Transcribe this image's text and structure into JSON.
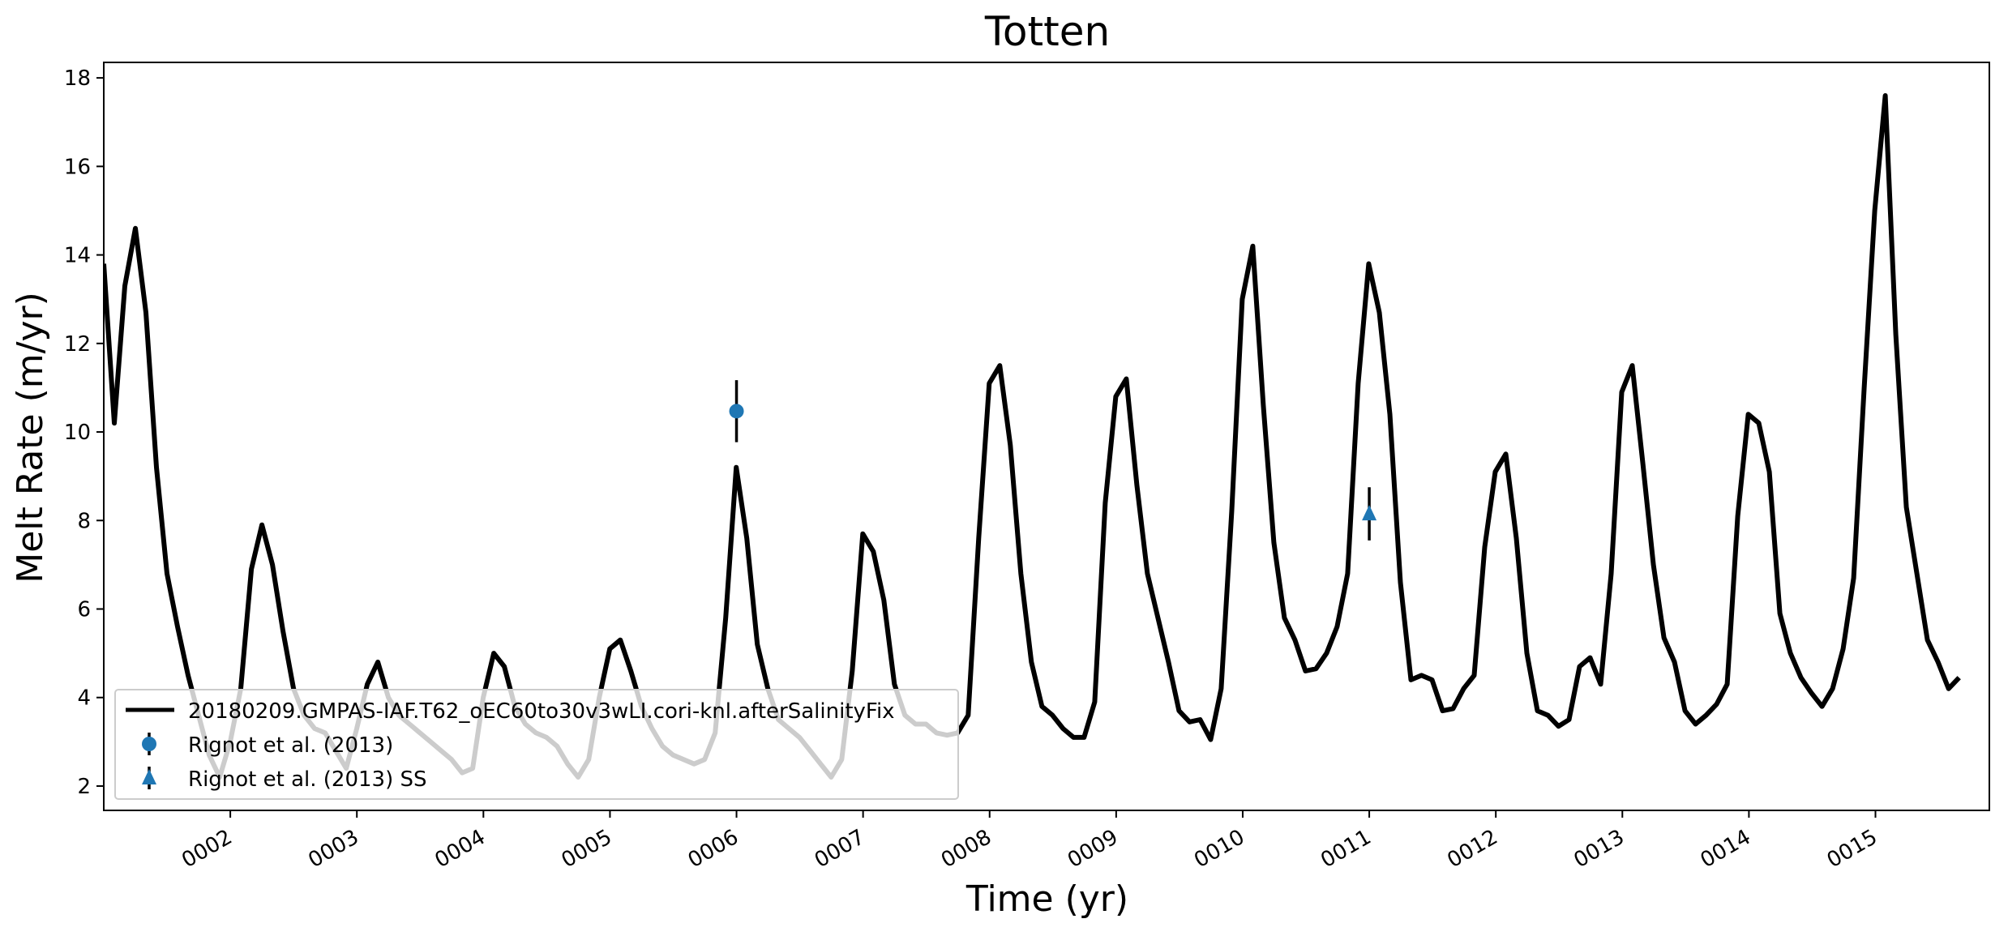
{
  "chart_data": {
    "type": "line",
    "title": "Totten",
    "xlabel": "Time (yr)",
    "ylabel": "Melt Rate (m/yr)",
    "xlim": [
      1.0,
      15.9
    ],
    "ylim": [
      1.45,
      18.35
    ],
    "x_ticks": [
      2,
      3,
      4,
      5,
      6,
      7,
      8,
      9,
      10,
      11,
      12,
      13,
      14,
      15
    ],
    "x_tick_labels": [
      "0002",
      "0003",
      "0004",
      "0005",
      "0006",
      "0007",
      "0008",
      "0009",
      "0010",
      "0011",
      "0012",
      "0013",
      "0014",
      "0015"
    ],
    "y_ticks": [
      2,
      4,
      6,
      8,
      10,
      12,
      14,
      16,
      18
    ],
    "y_tick_labels": [
      "2",
      "4",
      "6",
      "8",
      "10",
      "12",
      "14",
      "16",
      "18"
    ],
    "grid": false,
    "legend_position": "lower-left",
    "series": [
      {
        "name": "20180209.GMPAS-IAF.T62_oEC60to30v3wLI.cori-knl.afterSalinityFix",
        "color": "#000000",
        "marker": "none",
        "x_start": 1.0,
        "x_step": 0.0833,
        "values": [
          13.8,
          10.2,
          13.3,
          14.6,
          12.7,
          9.2,
          6.8,
          5.6,
          4.5,
          3.6,
          2.7,
          2.2,
          3.0,
          4.2,
          6.9,
          7.9,
          7.0,
          5.5,
          4.2,
          3.6,
          3.3,
          3.2,
          2.8,
          2.4,
          3.3,
          4.3,
          4.8,
          4.0,
          3.6,
          3.4,
          3.2,
          3.0,
          2.8,
          2.6,
          2.3,
          2.4,
          4.0,
          5.0,
          4.7,
          3.8,
          3.4,
          3.2,
          3.1,
          2.9,
          2.5,
          2.2,
          2.6,
          4.0,
          5.1,
          5.3,
          4.6,
          3.8,
          3.3,
          2.9,
          2.7,
          2.6,
          2.5,
          2.6,
          3.2,
          5.8,
          9.2,
          7.6,
          5.2,
          4.2,
          3.5,
          3.3,
          3.1,
          2.8,
          2.5,
          2.2,
          2.6,
          4.6,
          7.7,
          7.3,
          6.2,
          4.3,
          3.6,
          3.4,
          3.4,
          3.2,
          3.15,
          3.2,
          3.6,
          7.6,
          11.1,
          11.5,
          9.7,
          6.8,
          4.8,
          3.8,
          3.6,
          3.3,
          3.1,
          3.1,
          3.9,
          8.4,
          10.8,
          11.2,
          8.8,
          6.8,
          5.8,
          4.8,
          3.7,
          3.45,
          3.5,
          3.05,
          4.2,
          8.2,
          13.0,
          14.2,
          10.6,
          7.5,
          5.8,
          5.3,
          4.6,
          4.65,
          5.0,
          5.6,
          6.8,
          11.1,
          13.8,
          12.7,
          10.4,
          6.6,
          4.4,
          4.5,
          4.4,
          3.7,
          3.75,
          4.2,
          4.5,
          7.4,
          9.1,
          9.5,
          7.6,
          5.0,
          3.7,
          3.6,
          3.35,
          3.5,
          4.7,
          4.9,
          4.3,
          6.8,
          10.9,
          11.5,
          9.3,
          7.0,
          5.35,
          4.8,
          3.7,
          3.4,
          3.6,
          3.85,
          4.3,
          8.1,
          10.4,
          10.2,
          9.1,
          5.9,
          5.0,
          4.45,
          4.1,
          3.8,
          4.2,
          5.1,
          6.7,
          11.0,
          15.0,
          17.6,
          12.2,
          8.3,
          6.8,
          5.3,
          4.8,
          4.2,
          4.45
        ]
      },
      {
        "name": "Rignot et al. (2013)",
        "color": "#1f77b4",
        "marker": "circle",
        "x": [
          6.0
        ],
        "y": [
          10.47
        ],
        "yerr": [
          0.7
        ]
      },
      {
        "name": "Rignot et al. (2013) SS",
        "color": "#1f77b4",
        "marker": "triangle",
        "x": [
          11.0
        ],
        "y": [
          8.15
        ],
        "yerr": [
          0.6
        ]
      }
    ]
  }
}
